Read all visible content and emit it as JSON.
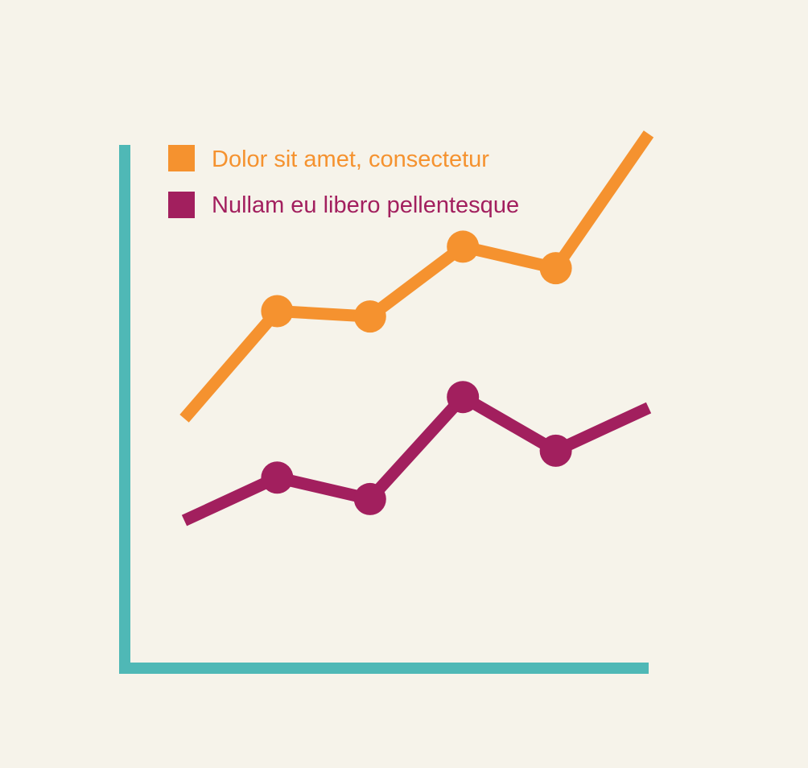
{
  "background": "#f6f3ea",
  "axis_color": "#4fb8b6",
  "chart_data": {
    "type": "line",
    "x": [
      1,
      2,
      3,
      4,
      5,
      6
    ],
    "ylim": [
      0,
      100
    ],
    "xlim": [
      1,
      6
    ],
    "grid": false,
    "legend_position": "top-left",
    "series": [
      {
        "name": "Dolor sit amet, consectetur",
        "color": "#f5922f",
        "values": [
          39,
          59,
          58,
          71,
          67,
          92
        ],
        "markers": [
          false,
          true,
          true,
          true,
          true,
          false
        ]
      },
      {
        "name": "Nullam eu libero pellentesque",
        "color": "#a21f5e",
        "values": [
          20,
          28,
          24,
          43,
          33,
          41
        ],
        "markers": [
          false,
          true,
          true,
          true,
          true,
          false
        ]
      }
    ]
  }
}
